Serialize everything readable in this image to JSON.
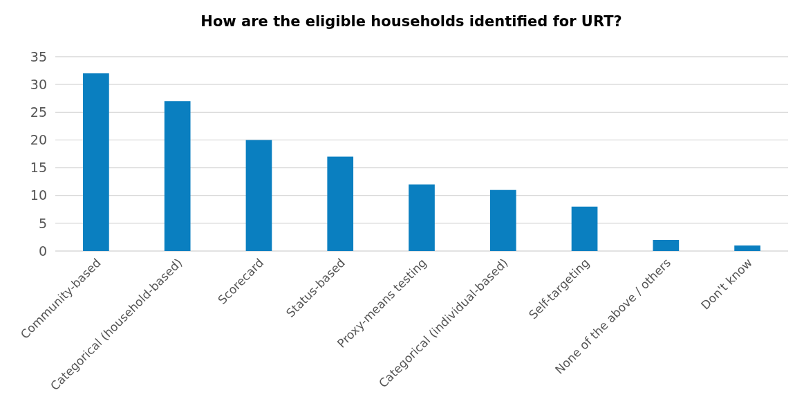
{
  "chart_data": {
    "type": "bar",
    "title": "How are the eligible households identified for URT?",
    "categories": [
      "Community-based",
      "Categorical (household-based)",
      "Scorecard",
      "Status-based",
      "Proxy-means testing",
      "Categorical (individual-based)",
      "Self-targeting",
      "None of the above / others",
      "Don't know"
    ],
    "values": [
      32,
      27,
      20,
      17,
      12,
      11,
      8,
      2,
      1
    ],
    "color": "#0a7fc0",
    "ylim": [
      0,
      35
    ],
    "yticks": [
      0,
      5,
      10,
      15,
      20,
      25,
      30,
      35
    ],
    "grid": "y"
  }
}
